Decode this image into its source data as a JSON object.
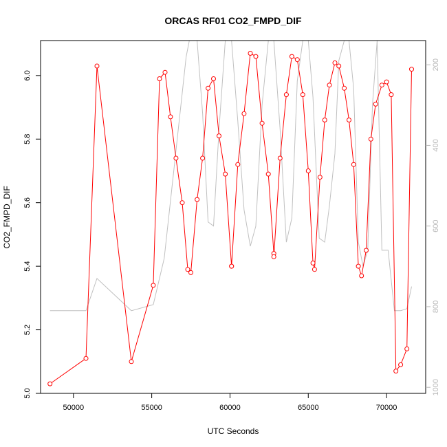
{
  "chart_data": {
    "type": "line",
    "title": "ORCAS RF01 CO2_FMPD_DIF",
    "xlabel": "UTC Seconds",
    "ylabel": "CO2_FMPD_DIF",
    "xlim": [
      47900,
      72500
    ],
    "ylim": [
      5.0,
      6.11
    ],
    "x_ticks": [
      50000,
      55000,
      60000,
      65000,
      70000
    ],
    "y_ticks": [
      5.0,
      5.2,
      5.4,
      5.6,
      5.8,
      6.0
    ],
    "y2_ticks": [
      200,
      400,
      600,
      800,
      1000
    ],
    "y2lim": [
      1015,
      140
    ],
    "series": [
      {
        "color": "#ff0000",
        "axis": "left",
        "marker": "open-circle",
        "x": [
          48500,
          50800,
          51500,
          53700,
          55100,
          55500,
          55850,
          56200,
          56550,
          56950,
          57300,
          57500,
          57900,
          58250,
          58600,
          58950,
          59300,
          59700,
          60100,
          60100,
          60500,
          60900,
          61300,
          61650,
          62050,
          62450,
          62800,
          62800,
          63200,
          63600,
          63950,
          64300,
          64650,
          65000,
          65300,
          65400,
          65750,
          66050,
          66350,
          66700,
          66950,
          67300,
          67600,
          67900,
          68200,
          68400,
          68700,
          69000,
          69300,
          69700,
          70000,
          70300,
          70600,
          70900,
          71300,
          71600
        ],
        "y": [
          5.03,
          5.11,
          6.03,
          5.1,
          5.34,
          5.99,
          6.01,
          5.87,
          5.74,
          5.6,
          5.39,
          5.38,
          5.61,
          5.74,
          5.96,
          5.99,
          5.81,
          5.69,
          5.4,
          5.4,
          5.72,
          5.88,
          6.07,
          6.06,
          5.85,
          5.69,
          5.44,
          5.43,
          5.74,
          5.94,
          6.06,
          6.05,
          5.94,
          5.7,
          5.41,
          5.39,
          5.68,
          5.86,
          5.97,
          6.04,
          6.03,
          5.96,
          5.86,
          5.72,
          5.4,
          5.37,
          5.45,
          5.8,
          5.91,
          5.97,
          5.98,
          5.94,
          5.07,
          5.09,
          5.14,
          6.02
        ]
      },
      {
        "color": "#c0c0c0",
        "axis": "right",
        "marker": "none",
        "x": [
          48500,
          50800,
          51500,
          53700,
          55100,
          55800,
          56500,
          57200,
          57400,
          57900,
          58250,
          58600,
          58950,
          59300,
          59700,
          60100,
          60500,
          60900,
          61300,
          61650,
          62050,
          62450,
          62800,
          63200,
          63600,
          63950,
          64300,
          64650,
          65000,
          65300,
          65700,
          66050,
          66350,
          66700,
          66950,
          67300,
          67600,
          67900,
          68200,
          68500,
          68800,
          69100,
          69400,
          69700,
          70100,
          70500,
          70900,
          71300,
          71600
        ],
        "y": [
          810,
          810,
          730,
          810,
          795,
          680,
          430,
          180,
          120,
          80,
          320,
          590,
          600,
          360,
          100,
          90,
          340,
          560,
          650,
          600,
          300,
          50,
          40,
          360,
          640,
          580,
          240,
          30,
          20,
          280,
          630,
          640,
          550,
          420,
          190,
          40,
          30,
          260,
          640,
          700,
          660,
          300,
          120,
          660,
          660,
          810,
          810,
          805,
          750
        ]
      }
    ]
  }
}
